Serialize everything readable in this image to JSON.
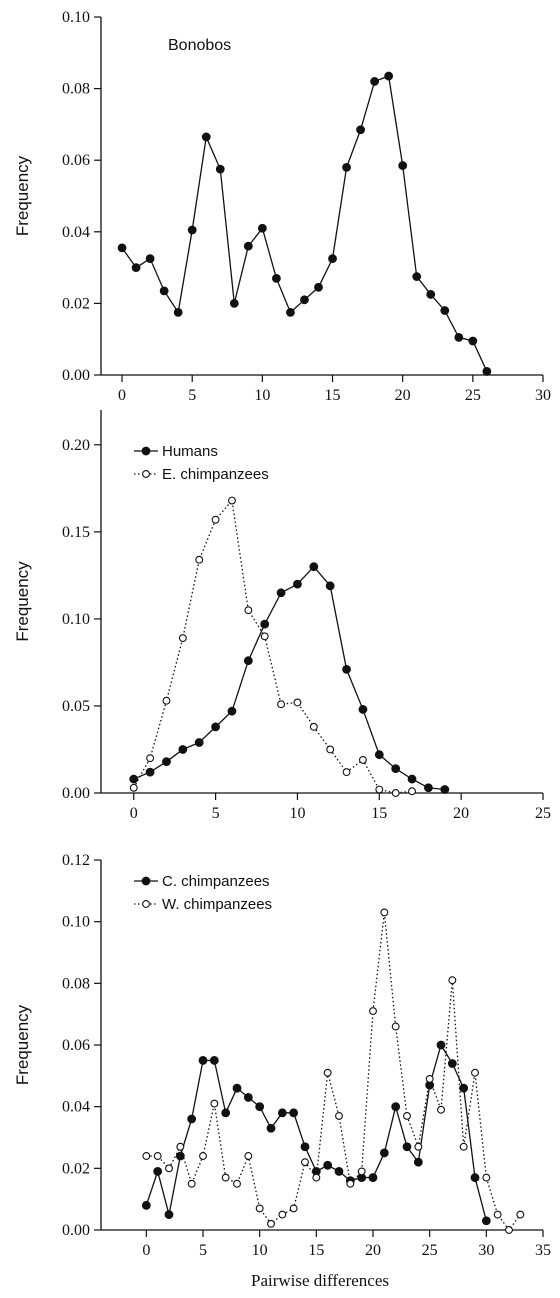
{
  "figure": {
    "xlabel": "Pairwise differences"
  },
  "chart_data": [
    {
      "type": "line",
      "title": "",
      "annotation": "Bonobos",
      "xlabel": "",
      "ylabel": "Frequency",
      "xlim": [
        -1.5,
        30
      ],
      "ylim": [
        0,
        0.1
      ],
      "xticks": [
        0,
        5,
        10,
        15,
        20,
        25,
        30
      ],
      "yticks": [
        0.0,
        0.02,
        0.04,
        0.06,
        0.08,
        0.1
      ],
      "ytick_decimals": 2,
      "grid": false,
      "legend": null,
      "series": [
        {
          "name": "",
          "style": "solid-filled",
          "x": [
            0,
            1,
            2,
            3,
            4,
            5,
            6,
            7,
            8,
            9,
            10,
            11,
            12,
            13,
            14,
            15,
            16,
            17,
            18,
            19,
            20,
            21,
            22,
            23,
            24,
            25,
            26
          ],
          "y": [
            0.0355,
            0.03,
            0.0325,
            0.0235,
            0.0175,
            0.0405,
            0.0665,
            0.0575,
            0.02,
            0.036,
            0.041,
            0.027,
            0.0175,
            0.021,
            0.0245,
            0.0325,
            0.058,
            0.0685,
            0.082,
            0.0835,
            0.0585,
            0.0275,
            0.0225,
            0.018,
            0.0105,
            0.0095,
            0.001
          ]
        }
      ]
    },
    {
      "type": "line",
      "title": "",
      "xlabel": "",
      "ylabel": "Frequency",
      "xlim": [
        -2,
        25
      ],
      "ylim": [
        0,
        0.22
      ],
      "xticks": [
        0,
        5,
        10,
        15,
        20,
        25
      ],
      "yticks": [
        0.0,
        0.05,
        0.1,
        0.15,
        0.2
      ],
      "ytick_decimals": 2,
      "grid": false,
      "legend": {
        "placement": "top-left",
        "entries": [
          "Humans",
          "E. chimpanzees"
        ]
      },
      "series": [
        {
          "name": "Humans",
          "style": "solid-filled",
          "x": [
            0,
            1,
            2,
            3,
            4,
            5,
            6,
            7,
            8,
            9,
            10,
            11,
            12,
            13,
            14,
            15,
            16,
            17,
            18,
            19
          ],
          "y": [
            0.008,
            0.012,
            0.018,
            0.025,
            0.029,
            0.038,
            0.047,
            0.076,
            0.097,
            0.115,
            0.12,
            0.13,
            0.119,
            0.071,
            0.048,
            0.022,
            0.014,
            0.008,
            0.003,
            0.002
          ]
        },
        {
          "name": "E. chimpanzees",
          "style": "dotted-open",
          "x": [
            0,
            1,
            2,
            3,
            4,
            5,
            6,
            7,
            8,
            9,
            10,
            11,
            12,
            13,
            14,
            15,
            16,
            17
          ],
          "y": [
            0.003,
            0.02,
            0.053,
            0.089,
            0.134,
            0.157,
            0.168,
            0.105,
            0.09,
            0.051,
            0.052,
            0.038,
            0.025,
            0.012,
            0.019,
            0.002,
            0.0,
            0.001
          ]
        }
      ]
    },
    {
      "type": "line",
      "title": "",
      "xlabel": "",
      "ylabel": "Frequency",
      "xlim": [
        -4,
        35
      ],
      "ylim": [
        0,
        0.12
      ],
      "xticks": [
        0,
        5,
        10,
        15,
        20,
        25,
        30,
        35
      ],
      "yticks": [
        0.0,
        0.02,
        0.04,
        0.06,
        0.08,
        0.1,
        0.12
      ],
      "ytick_decimals": 2,
      "grid": false,
      "legend": {
        "placement": "top-left",
        "entries": [
          "C. chimpanzees",
          "W. chimpanzees"
        ]
      },
      "series": [
        {
          "name": "C. chimpanzees",
          "style": "solid-filled",
          "x": [
            0,
            1,
            2,
            3,
            4,
            5,
            6,
            7,
            8,
            9,
            10,
            11,
            12,
            13,
            14,
            15,
            16,
            17,
            18,
            19,
            20,
            21,
            22,
            23,
            24,
            25,
            26,
            27,
            28,
            29,
            30
          ],
          "y": [
            0.008,
            0.019,
            0.005,
            0.024,
            0.036,
            0.055,
            0.055,
            0.038,
            0.046,
            0.043,
            0.04,
            0.033,
            0.038,
            0.038,
            0.027,
            0.019,
            0.021,
            0.019,
            0.016,
            0.017,
            0.017,
            0.025,
            0.04,
            0.027,
            0.022,
            0.047,
            0.06,
            0.054,
            0.046,
            0.017,
            0.003
          ]
        },
        {
          "name": "W. chimpanzees",
          "style": "dotted-open",
          "x": [
            0,
            1,
            2,
            3,
            4,
            5,
            6,
            7,
            8,
            9,
            10,
            11,
            12,
            13,
            14,
            15,
            16,
            17,
            18,
            19,
            20,
            21,
            22,
            23,
            24,
            25,
            26,
            27,
            28,
            29,
            30,
            31,
            32,
            33
          ],
          "y": [
            0.024,
            0.024,
            0.02,
            0.027,
            0.015,
            0.024,
            0.041,
            0.017,
            0.015,
            0.024,
            0.007,
            0.002,
            0.005,
            0.007,
            0.022,
            0.017,
            0.051,
            0.037,
            0.015,
            0.019,
            0.071,
            0.103,
            0.066,
            0.037,
            0.027,
            0.049,
            0.039,
            0.081,
            0.027,
            0.051,
            0.017,
            0.005,
            0.0,
            0.005
          ]
        }
      ]
    }
  ]
}
